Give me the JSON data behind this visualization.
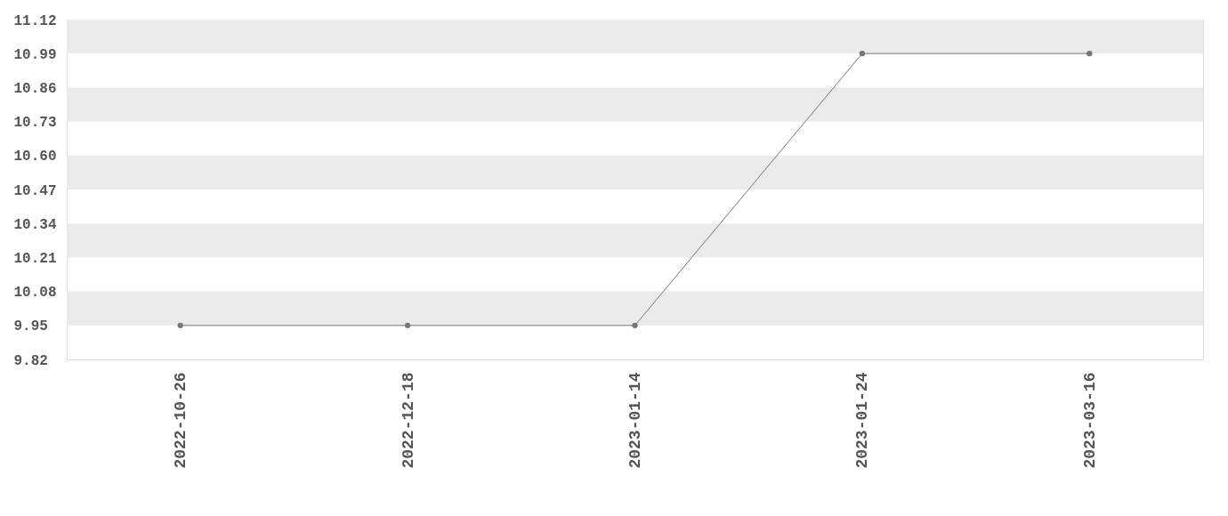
{
  "chart_data": {
    "type": "line",
    "categories": [
      "2022-10-26",
      "2022-12-18",
      "2023-01-14",
      "2023-01-24",
      "2023-03-16"
    ],
    "series": [
      {
        "color": "#777777",
        "values": [
          9.95,
          9.95,
          9.95,
          10.99,
          10.99
        ]
      }
    ],
    "ylim": [
      9.82,
      11.12
    ],
    "yticks": [
      9.82,
      9.95,
      10.08,
      10.21,
      10.34,
      10.47,
      {
        "value": 10.6,
        "label": "10.60"
      },
      10.73,
      10.86,
      10.99,
      11.12
    ],
    "bands": [
      {
        "axis": "y",
        "from": 9.95,
        "to": 10.08,
        "color": "#ebebeb"
      },
      {
        "axis": "y",
        "from": 10.21,
        "to": 10.34,
        "color": "#ebebeb"
      },
      {
        "axis": "y",
        "from": 10.47,
        "to": 10.6,
        "color": "#ebebeb"
      },
      {
        "axis": "y",
        "from": 10.73,
        "to": 10.86,
        "color": "#ebebeb"
      },
      {
        "axis": "y",
        "from": 10.99,
        "to": 11.12,
        "color": "#ebebeb"
      }
    ],
    "marker": "circle",
    "line_style": "solid"
  }
}
